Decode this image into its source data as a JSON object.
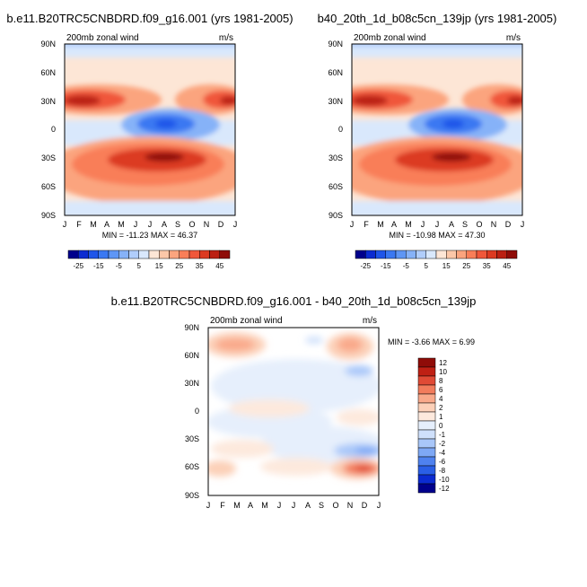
{
  "chart_data": [
    {
      "type": "heatmap",
      "title": "b.e11.B20TRC5CNBDRD.f09_g16.001 (yrs 1981-2005)",
      "subtitle_left": "200mb zonal wind",
      "subtitle_right": "m/s",
      "x_tick_labels": [
        "J",
        "F",
        "M",
        "A",
        "M",
        "J",
        "J",
        "A",
        "S",
        "O",
        "N",
        "D",
        "J"
      ],
      "y_tick_labels": [
        "90N",
        "60N",
        "30N",
        "0",
        "30S",
        "60S",
        "90S"
      ],
      "xlim": [
        "Jan",
        "Jan"
      ],
      "ylim": [
        -90,
        90
      ],
      "stats_text": "MIN = -11.23 MAX =  46.37",
      "min": -11.23,
      "max": 46.37,
      "colorbar": {
        "orientation": "horizontal",
        "levels": [
          -30,
          -25,
          -20,
          -15,
          -10,
          -5,
          0,
          5,
          10,
          15,
          20,
          25,
          30,
          35,
          40,
          45
        ],
        "tick_labels": [
          "-25",
          "-15",
          "-5",
          "5",
          "15",
          "25",
          "35",
          "45"
        ],
        "colors": [
          "#00008c",
          "#0b2bd1",
          "#1f55e9",
          "#3a78f2",
          "#5e96f5",
          "#86b2f8",
          "#b0cdfb",
          "#d9e8fc",
          "#fde6d6",
          "#fcc7a8",
          "#fba47e",
          "#f97e58",
          "#f0573a",
          "#dc3a22",
          "#bb2013",
          "#8f0c08"
        ]
      }
    },
    {
      "type": "heatmap",
      "title": "b40_20th_1d_b08c5cn_139jp (yrs 1981-2005)",
      "subtitle_left": "200mb zonal wind",
      "subtitle_right": "m/s",
      "x_tick_labels": [
        "J",
        "F",
        "M",
        "A",
        "M",
        "J",
        "J",
        "A",
        "S",
        "O",
        "N",
        "D",
        "J"
      ],
      "y_tick_labels": [
        "90N",
        "60N",
        "30N",
        "0",
        "30S",
        "60S",
        "90S"
      ],
      "xlim": [
        "Jan",
        "Jan"
      ],
      "ylim": [
        -90,
        90
      ],
      "stats_text": "MIN = -10.98 MAX =  47.30",
      "min": -10.98,
      "max": 47.3,
      "colorbar": {
        "orientation": "horizontal",
        "levels": [
          -30,
          -25,
          -20,
          -15,
          -10,
          -5,
          0,
          5,
          10,
          15,
          20,
          25,
          30,
          35,
          40,
          45
        ],
        "tick_labels": [
          "-25",
          "-15",
          "-5",
          "5",
          "15",
          "25",
          "35",
          "45"
        ],
        "colors": [
          "#00008c",
          "#0b2bd1",
          "#1f55e9",
          "#3a78f2",
          "#5e96f5",
          "#86b2f8",
          "#b0cdfb",
          "#d9e8fc",
          "#fde6d6",
          "#fcc7a8",
          "#fba47e",
          "#f97e58",
          "#f0573a",
          "#dc3a22",
          "#bb2013",
          "#8f0c08"
        ]
      }
    },
    {
      "type": "heatmap",
      "title": "b.e11.B20TRC5CNBDRD.f09_g16.001 - b40_20th_1d_b08c5cn_139jp",
      "subtitle_left": "200mb zonal wind",
      "subtitle_right": "m/s",
      "x_tick_labels": [
        "J",
        "F",
        "M",
        "A",
        "M",
        "J",
        "J",
        "A",
        "S",
        "O",
        "N",
        "D",
        "J"
      ],
      "y_tick_labels": [
        "90N",
        "60N",
        "30N",
        "0",
        "30S",
        "60S",
        "90S"
      ],
      "xlim": [
        "Jan",
        "Jan"
      ],
      "ylim": [
        -90,
        90
      ],
      "stats_text": "MIN =  -3.66 MAX =   6.99",
      "min": -3.66,
      "max": 6.99,
      "colorbar": {
        "orientation": "vertical",
        "levels": [
          -12,
          -10,
          -8,
          -6,
          -4,
          -2,
          -1,
          0,
          1,
          2,
          4,
          6,
          8,
          10,
          12
        ],
        "tick_labels": [
          "12",
          "10",
          "8",
          "6",
          "4",
          "2",
          "1",
          "0",
          "-1",
          "-2",
          "-4",
          "-6",
          "-8",
          "-10",
          "-12"
        ],
        "colors": [
          "#00008c",
          "#0b2bd1",
          "#2a5fe6",
          "#4f82ef",
          "#7ea8f5",
          "#a9c7f9",
          "#cfe0fb",
          "#e6effc",
          "#fde9dd",
          "#fcd0b8",
          "#f9a98a",
          "#f27c5c",
          "#e04a35",
          "#bf2014",
          "#8f0c08"
        ]
      }
    }
  ]
}
